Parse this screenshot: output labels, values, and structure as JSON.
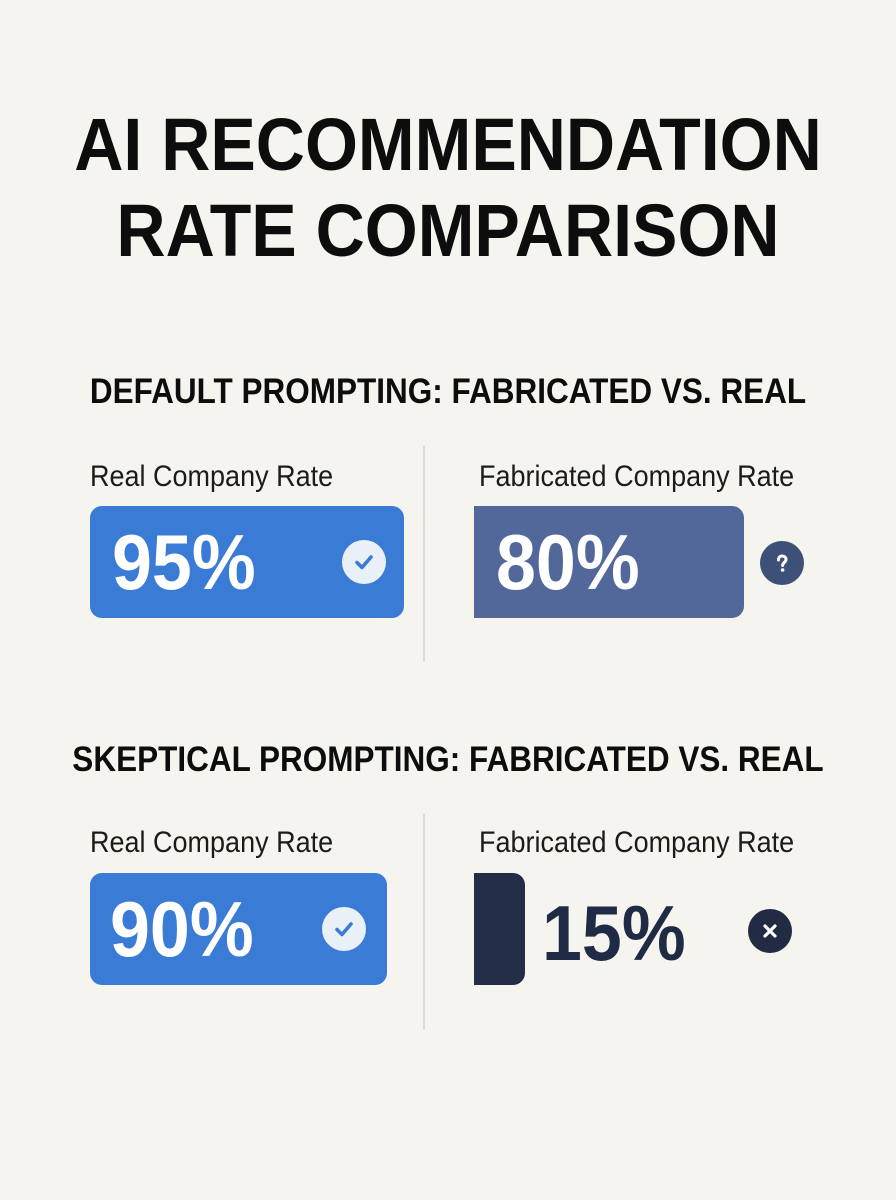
{
  "title": "AI RECOMMENDATION RATE COMPARISON",
  "colors": {
    "background": "#f6f4ef",
    "real_bar": "#3a7bd5",
    "fabricated_default_bar": "#52679a",
    "fabricated_skeptical_bar": "#232d47",
    "check_icon": "#eaf0f7",
    "question_icon": "#3d5078",
    "x_icon": "#222b44"
  },
  "chart_data": {
    "type": "bar",
    "title": "AI RECOMMENDATION RATE COMPARISON",
    "unit": "%",
    "ylim": [
      0,
      100
    ],
    "grid": false,
    "groups": [
      {
        "heading": "DEFAULT PROMPTING: FABRICATED VS. REAL",
        "bars": [
          {
            "label": "Real Company Rate",
            "value": 95,
            "display": "95%",
            "icon": "check-icon"
          },
          {
            "label": "Fabricated Company Rate",
            "value": 80,
            "display": "80%",
            "icon": "question-icon"
          }
        ]
      },
      {
        "heading": "SKEPTICAL PROMPTING: FABRICATED VS. REAL",
        "bars": [
          {
            "label": "Real Company Rate",
            "value": 90,
            "display": "90%",
            "icon": "check-icon"
          },
          {
            "label": "Fabricated Company Rate",
            "value": 15,
            "display": "15%",
            "icon": "x-icon"
          }
        ]
      }
    ]
  }
}
